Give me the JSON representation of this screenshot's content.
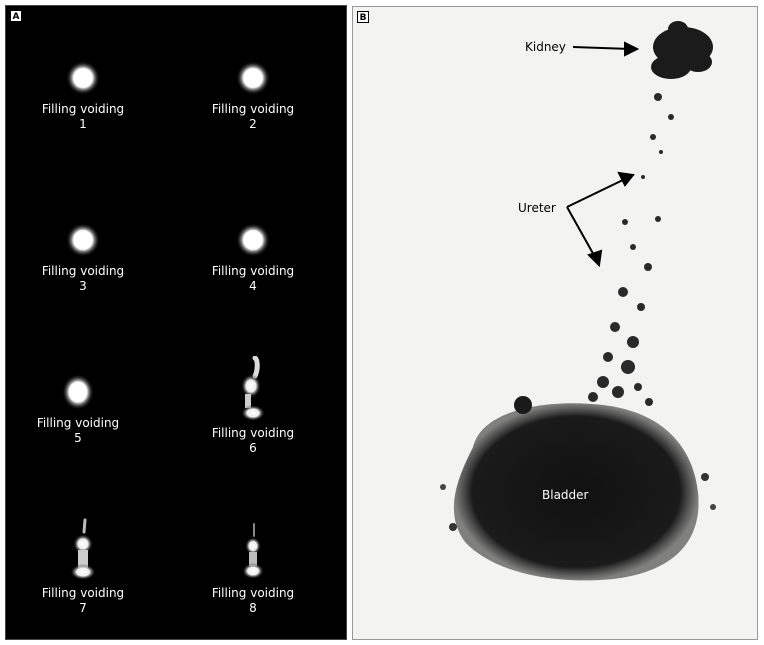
{
  "panel_a": {
    "label": "A",
    "frames": [
      {
        "line1": "Filling voiding",
        "line2": "1",
        "shape": "dot"
      },
      {
        "line1": "Filling voiding",
        "line2": "2",
        "shape": "dot"
      },
      {
        "line1": "Filling voiding",
        "line2": "3",
        "shape": "dot"
      },
      {
        "line1": "Filling voiding",
        "line2": "4",
        "shape": "dot"
      },
      {
        "line1": "Filling voiding",
        "line2": "5",
        "shape": "dot"
      },
      {
        "line1": "Filling voiding",
        "line2": "6",
        "shape": "reflux"
      },
      {
        "line1": "Filling voiding",
        "line2": "7",
        "shape": "reflux"
      },
      {
        "line1": "Filling voiding",
        "line2": "8",
        "shape": "reflux-small"
      }
    ]
  },
  "panel_b": {
    "label": "B",
    "annotations": {
      "kidney": "Kidney",
      "ureter": "Ureter",
      "bladder": "Bladder"
    }
  }
}
